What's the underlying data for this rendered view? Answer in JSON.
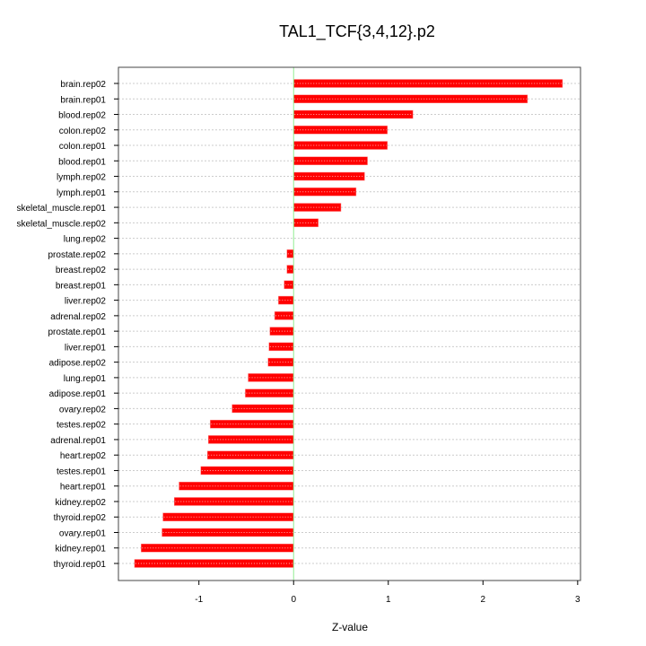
{
  "chart_data": {
    "type": "bar",
    "orientation": "horizontal",
    "title": "TAL1_TCF{3,4,12}.p2",
    "xlabel": "Z-value",
    "ylabel": "",
    "xlim": [
      -1.85,
      3.03
    ],
    "xticks": [
      -1,
      0,
      1,
      2,
      3
    ],
    "grid": true,
    "bar_color": "#ff0000",
    "zero_line_color": "#90ee90",
    "categories": [
      "brain.rep02",
      "brain.rep01",
      "blood.rep02",
      "colon.rep02",
      "colon.rep01",
      "blood.rep01",
      "lymph.rep02",
      "lymph.rep01",
      "skeletal_muscle.rep01",
      "skeletal_muscle.rep02",
      "lung.rep02",
      "prostate.rep02",
      "breast.rep02",
      "breast.rep01",
      "liver.rep02",
      "adrenal.rep02",
      "prostate.rep01",
      "liver.rep01",
      "adipose.rep02",
      "lung.rep01",
      "adipose.rep01",
      "ovary.rep02",
      "testes.rep02",
      "adrenal.rep01",
      "heart.rep02",
      "testes.rep01",
      "heart.rep01",
      "kidney.rep02",
      "thyroid.rep02",
      "ovary.rep01",
      "kidney.rep01",
      "thyroid.rep01"
    ],
    "values": [
      2.84,
      2.47,
      1.26,
      0.99,
      0.99,
      0.78,
      0.75,
      0.66,
      0.5,
      0.26,
      0.0,
      -0.07,
      -0.07,
      -0.1,
      -0.16,
      -0.2,
      -0.25,
      -0.26,
      -0.27,
      -0.48,
      -0.51,
      -0.65,
      -0.88,
      -0.9,
      -0.91,
      -0.98,
      -1.21,
      -1.26,
      -1.38,
      -1.39,
      -1.61,
      -1.68
    ]
  }
}
